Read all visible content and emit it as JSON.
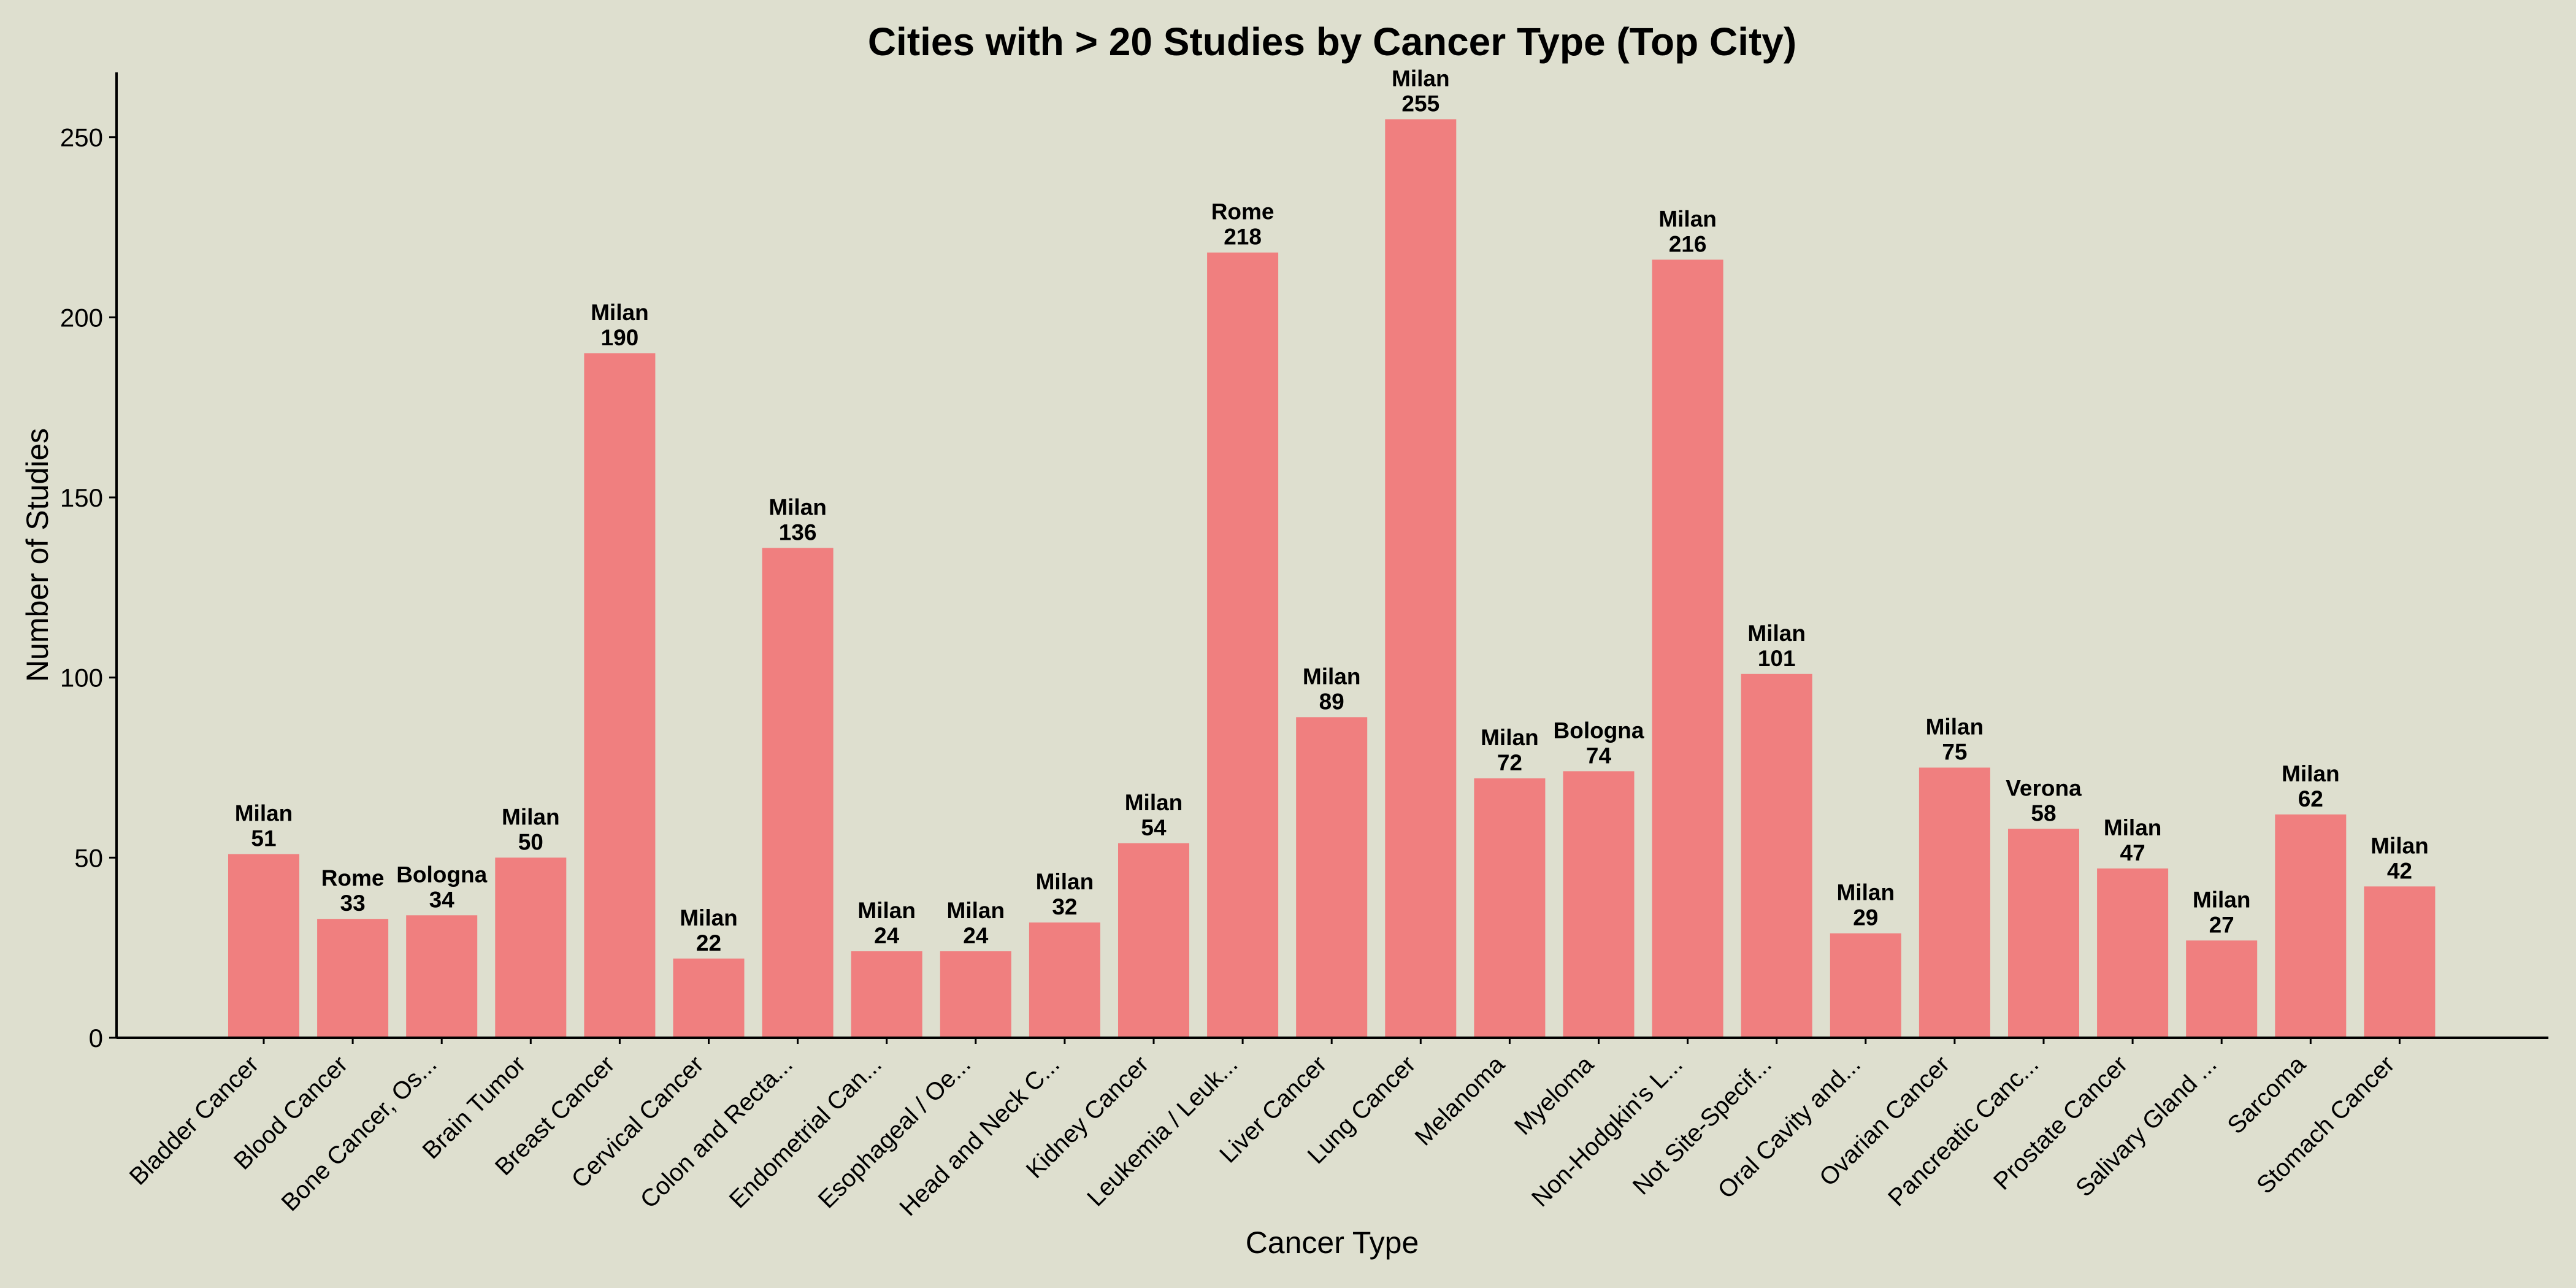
{
  "chart_data": {
    "type": "bar",
    "title": "Cities with > 20 Studies by Cancer Type (Top City)",
    "xlabel": "Cancer Type",
    "ylabel": "Number of Studies",
    "ylim": [
      0,
      268
    ],
    "yticks": [
      "0",
      "50",
      "100",
      "150",
      "200",
      "250"
    ],
    "bar_color": "#f07f7f",
    "background_color": "#dedfcf",
    "grid": false,
    "legend": "none",
    "categories": [
      "Bladder Cancer",
      "Blood Cancer",
      "Bone Cancer, Os...",
      "Brain Tumor",
      "Breast Cancer",
      "Cervical Cancer",
      "Colon and Recta...",
      "Endometrial Can...",
      "Esophageal / Oe...",
      "Head and Neck C...",
      "Kidney Cancer",
      "Leukemia / Leuk...",
      "Liver Cancer",
      "Lung Cancer",
      "Melanoma",
      "Myeloma",
      "Non-Hodgkin's L...",
      "Not Site-Specif...",
      "Oral Cavity and...",
      "Ovarian Cancer",
      "Pancreatic Canc...",
      "Prostate Cancer",
      "Salivary Gland ...",
      "Sarcoma",
      "Stomach Cancer"
    ],
    "values": [
      51,
      33,
      34,
      50,
      190,
      22,
      136,
      24,
      24,
      32,
      54,
      218,
      89,
      255,
      72,
      74,
      216,
      101,
      29,
      75,
      58,
      47,
      27,
      62,
      42
    ],
    "top_city": [
      "Milan",
      "Rome",
      "Bologna",
      "Milan",
      "Milan",
      "Milan",
      "Milan",
      "Milan",
      "Milan",
      "Milan",
      "Milan",
      "Rome",
      "Milan",
      "Milan",
      "Milan",
      "Bologna",
      "Milan",
      "Milan",
      "Milan",
      "Milan",
      "Verona",
      "Milan",
      "Milan",
      "Milan",
      "Milan"
    ]
  }
}
